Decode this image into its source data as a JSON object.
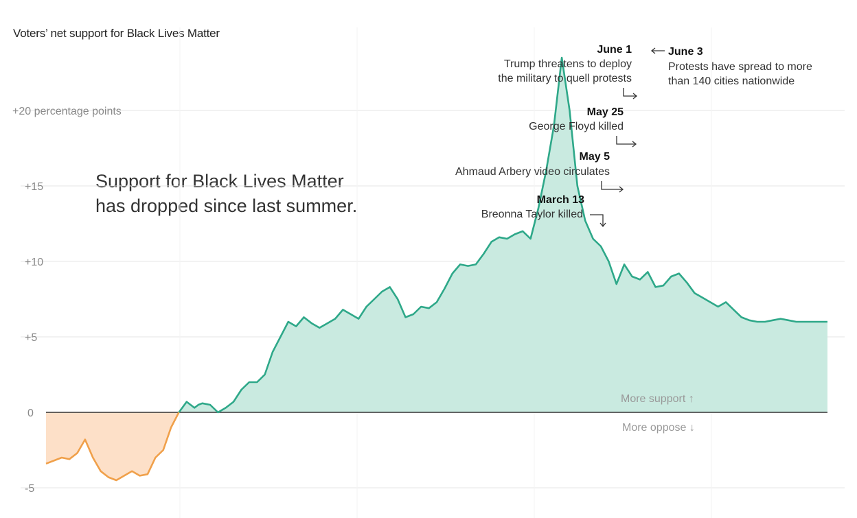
{
  "chart_data": {
    "type": "area",
    "title": "Voters’ net support for Black Lives Matter",
    "headline": [
      "Support for Black Lives Matter",
      "has dropped since last summer."
    ],
    "y_unit_label": "+20 percentage points",
    "ylim": [
      -5.5,
      24
    ],
    "y_ticks": [
      {
        "value": 20,
        "label": "+20 percentage points"
      },
      {
        "value": 15,
        "label": "+15"
      },
      {
        "value": 10,
        "label": "+10"
      },
      {
        "value": 5,
        "label": "+5"
      },
      {
        "value": 0,
        "label": "0"
      },
      {
        "value": -5,
        "label": "-5"
      }
    ],
    "grid": true,
    "colors": {
      "positive_line": "#2ea889",
      "positive_fill": "#c9eae0",
      "negative_line": "#f0a04a",
      "negative_fill": "#fde0c8",
      "zero_line": "#333333",
      "grid": "#e6e6e6"
    },
    "direction_labels": {
      "up": "More support ↑",
      "down": "More oppose ↓"
    },
    "series": [
      {
        "x": [
          0,
          2,
          3,
          4,
          5,
          6,
          7,
          8,
          9,
          10,
          11,
          12,
          13,
          14,
          15,
          16,
          17,
          18,
          19,
          19.5,
          20,
          21,
          22,
          23,
          24,
          25,
          26,
          27,
          28,
          29,
          30,
          31,
          32,
          33,
          34,
          35,
          36,
          37,
          38,
          39,
          40,
          41,
          42,
          43,
          44,
          45,
          46,
          47,
          48,
          49,
          50,
          51,
          52,
          53,
          54,
          55,
          56,
          57,
          58,
          59,
          60,
          61,
          62,
          63,
          64,
          65,
          66,
          67,
          68,
          69,
          70,
          71,
          72,
          73,
          74,
          75,
          76,
          77,
          78,
          79,
          80,
          81,
          82,
          83,
          84,
          85,
          86,
          87,
          88,
          89,
          90,
          91,
          92,
          93,
          94,
          95,
          96,
          97,
          98,
          99,
          100
        ],
        "y": [
          -3.4,
          -3.0,
          -3.1,
          -2.7,
          -1.8,
          -3.0,
          -3.9,
          -4.3,
          -4.5,
          -4.2,
          -3.9,
          -4.2,
          -4.1,
          -3.0,
          -2.5,
          -1.0,
          0,
          0.7,
          0.3,
          0.5,
          0.6,
          0.5,
          0.0,
          0.3,
          0.7,
          1.5,
          2.0,
          2.0,
          2.5,
          4.0,
          5.0,
          6.0,
          5.7,
          6.3,
          5.9,
          5.6,
          5.9,
          6.2,
          6.8,
          6.5,
          6.2,
          7.0,
          7.5,
          8.0,
          8.3,
          7.5,
          6.3,
          6.5,
          7.0,
          6.9,
          7.3,
          8.2,
          9.2,
          9.8,
          9.7,
          9.8,
          10.5,
          11.3,
          11.6,
          11.5,
          11.8,
          12.0,
          11.5,
          13.5,
          16.0,
          19.0,
          23.5,
          20.0,
          15.0,
          12.7,
          11.5,
          11.0,
          10.0,
          8.5,
          9.8,
          9.0,
          8.8,
          9.3,
          8.3,
          8.4,
          9.0,
          9.2,
          8.6,
          7.9,
          7.6,
          7.3,
          7.0,
          7.3,
          6.8,
          6.3,
          6.1,
          6.0,
          6.0,
          6.1,
          6.2,
          6.1,
          6.0,
          6.0,
          6.0,
          6.0,
          6.0
        ]
      }
    ],
    "annotations": [
      {
        "date": "June 1",
        "text": [
          "Trump threatens to deploy",
          "the military to quell protests"
        ],
        "arrow": "→"
      },
      {
        "date": "June 3",
        "text": [
          "Protests have spread to more",
          "than 140 cities nationwide"
        ],
        "arrow": "←"
      },
      {
        "date": "May 25",
        "text": [
          "George Floyd killed"
        ],
        "arrow": "→"
      },
      {
        "date": "May 5",
        "text": [
          "Ahmaud Arbery video circulates"
        ],
        "arrow": "→"
      },
      {
        "date": "March 13",
        "text": [
          "Breonna Taylor killed"
        ],
        "arrow": "↓"
      }
    ]
  }
}
